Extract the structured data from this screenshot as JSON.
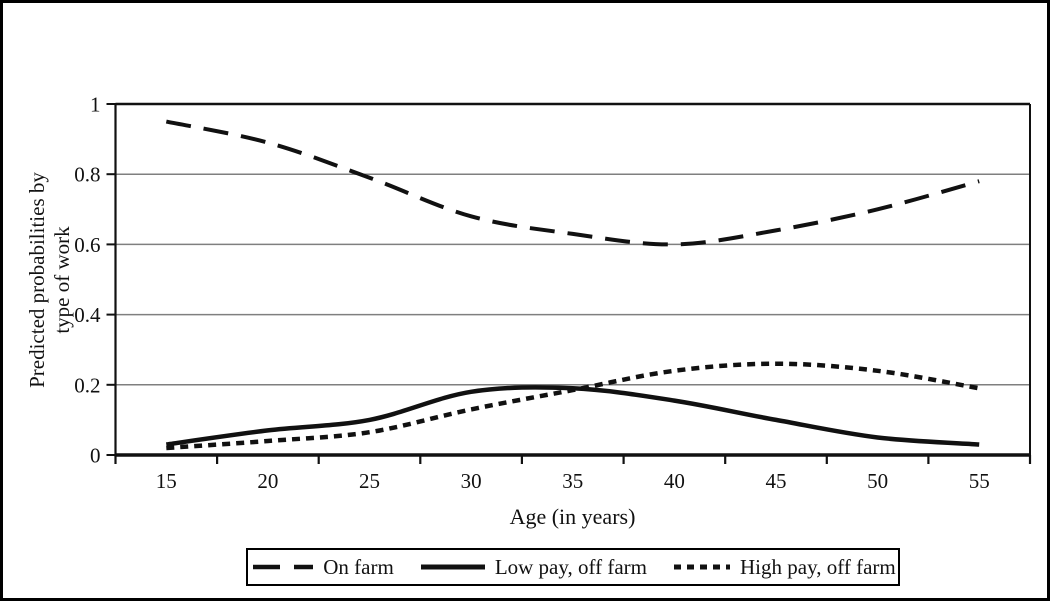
{
  "figure": {
    "bg_color": "#ffffff",
    "frame_color": "#000000",
    "gridline_color": "#7f7f7f",
    "ink_color": "#111111"
  },
  "chart_data": {
    "type": "line",
    "title": "",
    "xlabel": "Age (in years)",
    "ylabel": "Predicted probabilities by type of work",
    "ylabel_lines": [
      "Predicted probabilities by",
      "type of work"
    ],
    "x_values": [
      15,
      20,
      25,
      30,
      35,
      40,
      45,
      50,
      55
    ],
    "x_tick_labels": [
      "15",
      "20",
      "25",
      "30",
      "35",
      "40",
      "45",
      "50",
      "55"
    ],
    "y_ticks": [
      0,
      0.2,
      0.4,
      0.6,
      0.8,
      1
    ],
    "y_tick_labels": [
      "0",
      "0.2",
      "0.4",
      "0.6",
      "0.8",
      "1"
    ],
    "ylim": [
      0,
      1
    ],
    "grid": "horizontal-only",
    "legend_position": "bottom-center",
    "series": [
      {
        "name": "On farm",
        "line_style": "long-dash",
        "values": [
          0.95,
          0.89,
          0.79,
          0.68,
          0.63,
          0.6,
          0.64,
          0.7,
          0.78
        ]
      },
      {
        "name": "Low pay, off farm",
        "line_style": "solid",
        "values": [
          0.03,
          0.07,
          0.1,
          0.18,
          0.19,
          0.155,
          0.1,
          0.05,
          0.03
        ]
      },
      {
        "name": "High pay, off farm",
        "line_style": "dotted",
        "values": [
          0.02,
          0.04,
          0.065,
          0.13,
          0.185,
          0.24,
          0.26,
          0.24,
          0.19
        ]
      }
    ]
  }
}
